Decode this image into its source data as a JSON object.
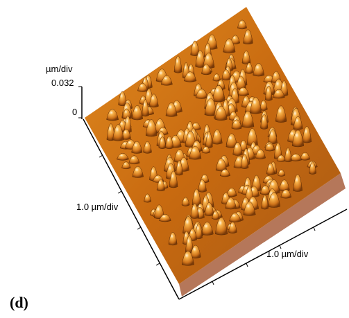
{
  "z_axis": {
    "unit": "µm/div",
    "max": 0.032,
    "min": 0
  },
  "y_axis": {
    "label": "1.0 µm/div"
  },
  "x_axis": {
    "label": "1.0 µm/div"
  },
  "panel_label": "(d)"
}
